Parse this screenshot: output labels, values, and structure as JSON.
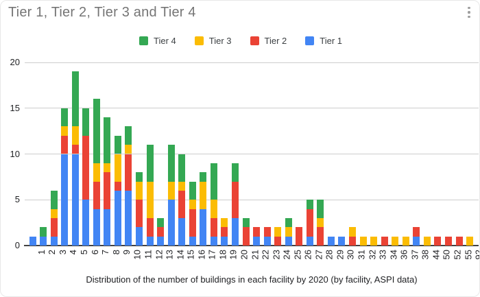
{
  "chart_data": {
    "type": "bar",
    "stacked": true,
    "title": "Tier 1, Tier 2, Tier 3 and Tier 4",
    "xlabel": "Distribution of the number of buildings in each facility by 2020 (by facility, ASPI data)",
    "ylim": [
      0,
      20
    ],
    "yticks": [
      0,
      5,
      10,
      15,
      20
    ],
    "grid": true,
    "legend_position": "top",
    "categories": [
      "1",
      "2",
      "3",
      "4",
      "5",
      "6",
      "7",
      "8",
      "9",
      "10",
      "11",
      "12",
      "13",
      "14",
      "15",
      "16",
      "17",
      "18",
      "19",
      "20",
      "21",
      "22",
      "23",
      "24",
      "25",
      "26",
      "27",
      "28",
      "29",
      "30",
      "31",
      "32",
      "33",
      "34",
      "36",
      "37",
      "38",
      "44",
      "50",
      "52",
      "55",
      "92"
    ],
    "series": [
      {
        "name": "Tier 1",
        "color": "#4285F4",
        "values": [
          1,
          1,
          1,
          10,
          10,
          5,
          4,
          4,
          6,
          6,
          2,
          1,
          1,
          5,
          3,
          1,
          4,
          1,
          1,
          3,
          0,
          1,
          1,
          0,
          1,
          0,
          1,
          0,
          1,
          1,
          0,
          0,
          0,
          0,
          0,
          0,
          1,
          0,
          0,
          0,
          0,
          0
        ]
      },
      {
        "name": "Tier 2",
        "color": "#EA4335",
        "values": [
          0,
          0,
          2,
          2,
          1,
          7,
          3,
          4,
          1,
          4,
          3,
          2,
          1,
          0,
          3,
          3,
          0,
          2,
          1,
          4,
          2,
          1,
          1,
          1,
          0,
          2,
          3,
          2,
          0,
          0,
          1,
          0,
          0,
          1,
          0,
          0,
          1,
          0,
          1,
          1,
          1,
          0
        ]
      },
      {
        "name": "Tier 3",
        "color": "#FBBC04",
        "values": [
          0,
          0,
          1,
          1,
          2,
          0,
          2,
          1,
          3,
          1,
          2,
          4,
          0,
          2,
          1,
          1,
          3,
          2,
          1,
          0,
          0,
          0,
          0,
          1,
          1,
          0,
          0,
          1,
          0,
          0,
          1,
          1,
          1,
          0,
          1,
          1,
          0,
          1,
          0,
          0,
          0,
          1
        ]
      },
      {
        "name": "Tier 4",
        "color": "#34A853",
        "values": [
          0,
          1,
          2,
          2,
          6,
          3,
          7,
          5,
          2,
          2,
          1,
          4,
          1,
          4,
          3,
          2,
          1,
          4,
          0,
          2,
          1,
          0,
          0,
          0,
          1,
          0,
          1,
          2,
          0,
          0,
          0,
          0,
          0,
          0,
          0,
          0,
          0,
          0,
          0,
          0,
          0,
          0
        ]
      }
    ]
  },
  "legend": {
    "items": [
      {
        "label": "Tier 4",
        "color": "#34A853"
      },
      {
        "label": "Tier 3",
        "color": "#FBBC04"
      },
      {
        "label": "Tier 2",
        "color": "#EA4335"
      },
      {
        "label": "Tier 1",
        "color": "#4285F4"
      }
    ]
  }
}
